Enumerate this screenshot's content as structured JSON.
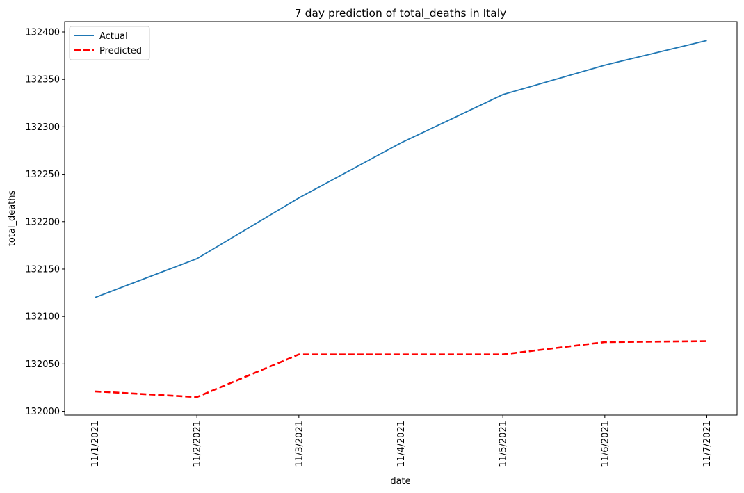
{
  "chart_data": {
    "type": "line",
    "title": "7 day prediction of total_deaths in Italy",
    "xlabel": "date",
    "ylabel": "total_deaths",
    "categories": [
      "11/1/2021",
      "11/2/2021",
      "11/3/2021",
      "11/4/2021",
      "11/5/2021",
      "11/6/2021",
      "11/7/2021"
    ],
    "ylim": [
      131996,
      132411
    ],
    "yticks": [
      132000,
      132050,
      132100,
      132150,
      132200,
      132250,
      132300,
      132350,
      132400
    ],
    "grid": false,
    "legend_position": "top-left",
    "series": [
      {
        "name": "Actual",
        "values": [
          132120,
          132161,
          132225,
          132283,
          132334,
          132365,
          132391
        ],
        "color": "#1f77b4",
        "style": "solid"
      },
      {
        "name": "Predicted",
        "values": [
          132021,
          132015,
          132060,
          132060,
          132060,
          132073,
          132074
        ],
        "color": "#ff0000",
        "style": "dashed"
      }
    ]
  }
}
